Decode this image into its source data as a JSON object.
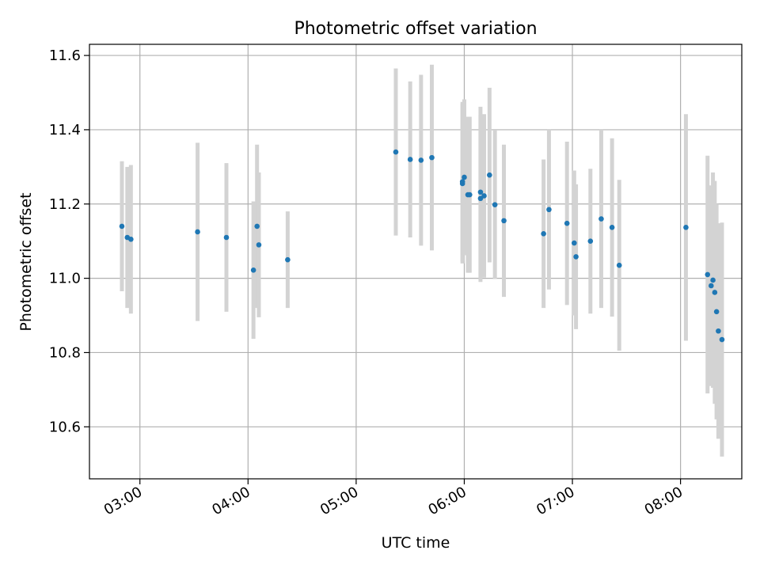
{
  "chart_data": {
    "type": "scatter",
    "title": "Photometric offset variation",
    "xlabel": "UTC time",
    "ylabel": "Photometric offset",
    "xlim": [
      "02:32",
      "08:34"
    ],
    "ylim": [
      10.46,
      11.63
    ],
    "x_ticks": [
      "03:00",
      "04:00",
      "05:00",
      "06:00",
      "07:00",
      "08:00"
    ],
    "y_ticks": [
      10.6,
      10.8,
      11.0,
      11.2,
      11.4,
      11.6
    ],
    "y_tick_labels": [
      "10.6",
      "10.8",
      "11.0",
      "11.2",
      "11.4",
      "11.6"
    ],
    "grid": true,
    "point_color": "#1f77b4",
    "errorbar_color": "#d3d3d3",
    "series": [
      {
        "x": [
          "02:50",
          "02:53",
          "02:55",
          "03:32",
          "03:48",
          "04:03",
          "04:05",
          "04:06",
          "04:22",
          "05:22",
          "05:30",
          "05:36",
          "05:42",
          "05:59",
          "05:59",
          "06:00",
          "06:02",
          "06:03",
          "06:09",
          "06:09",
          "06:11",
          "06:14",
          "06:17",
          "06:22",
          "06:44",
          "06:47",
          "06:57",
          "07:01",
          "07:02",
          "07:10",
          "07:16",
          "07:22",
          "07:26",
          "08:03",
          "08:15",
          "08:17",
          "08:18",
          "08:19",
          "08:20",
          "08:21",
          "08:23"
        ],
        "y": [
          11.14,
          11.11,
          11.105,
          11.125,
          11.11,
          11.022,
          11.14,
          11.09,
          11.05,
          11.34,
          11.32,
          11.318,
          11.325,
          11.255,
          11.26,
          11.272,
          11.225,
          11.225,
          11.232,
          11.215,
          11.222,
          11.278,
          11.198,
          11.155,
          11.12,
          11.185,
          11.148,
          11.095,
          11.058,
          11.1,
          11.16,
          11.137,
          11.035,
          11.137,
          11.01,
          10.98,
          10.995,
          10.962,
          10.91,
          10.858,
          10.835
        ],
        "err": [
          0.175,
          0.19,
          0.2,
          0.24,
          0.2,
          0.185,
          0.22,
          0.195,
          0.13,
          0.225,
          0.21,
          0.23,
          0.25,
          0.215,
          0.215,
          0.21,
          0.21,
          0.21,
          0.23,
          0.225,
          0.22,
          0.235,
          0.2,
          0.205,
          0.2,
          0.215,
          0.22,
          0.195,
          0.195,
          0.195,
          0.24,
          0.24,
          0.23,
          0.305,
          0.32,
          0.27,
          0.29,
          0.3,
          0.29,
          0.29,
          0.315
        ]
      }
    ]
  }
}
